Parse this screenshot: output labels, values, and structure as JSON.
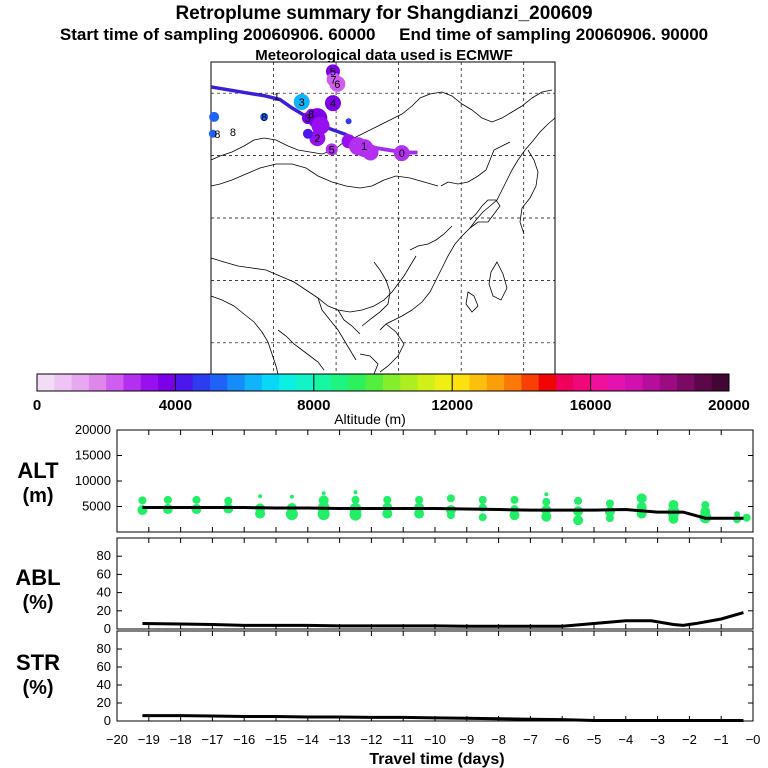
{
  "header": {
    "title": "Retroplume summary for Shangdianzi_200609",
    "start_label": "Start time of sampling 20060906. 60000",
    "end_label": "End time of sampling 20060906. 90000",
    "met_label": "Meteorological data used is ECMWF"
  },
  "colors": {
    "track": "#3b1fd8",
    "track_end": "#a32cf0",
    "alt_points": "#22ee66",
    "line": "#000000"
  },
  "map_labels": [
    {
      "text": "0",
      "lon": 125.5,
      "lat": 40.4
    },
    {
      "text": "1",
      "lon": 105.5,
      "lat": 49.5
    },
    {
      "text": "1",
      "lon": 119.5,
      "lat": 41.5
    },
    {
      "text": "2",
      "lon": 112.0,
      "lat": 42.8
    },
    {
      "text": "3",
      "lon": 109.5,
      "lat": 48.6
    },
    {
      "text": "3",
      "lon": 110.5,
      "lat": 46.0
    },
    {
      "text": "4",
      "lon": 114.5,
      "lat": 48.4
    },
    {
      "text": "5",
      "lon": 114.5,
      "lat": 53.5
    },
    {
      "text": "5",
      "lon": 114.3,
      "lat": 41.0
    },
    {
      "text": "6",
      "lon": 115.2,
      "lat": 51.5
    },
    {
      "text": "7",
      "lon": 114.6,
      "lat": 52.2
    },
    {
      "text": "8",
      "lon": 111.0,
      "lat": 46.7
    },
    {
      "text": "8",
      "lon": 103.5,
      "lat": 46.2
    },
    {
      "text": "8",
      "lon": 98.5,
      "lat": 43.8
    },
    {
      "text": "8",
      "lon": 96.0,
      "lat": 43.5
    }
  ],
  "colorbar": {
    "tick_labels": [
      "0",
      "4000",
      "8000",
      "12000",
      "16000",
      "20000"
    ],
    "label": "Altitude (m)"
  },
  "panels": {
    "alt": {
      "label": "ALT",
      "unit": "(m)"
    },
    "abl": {
      "label": "ABL",
      "unit": "(%)"
    },
    "str": {
      "label": "STR",
      "unit": "(%)"
    },
    "xlabel": "Travel time (days)"
  },
  "chart_data": [
    {
      "type": "map",
      "title": "Retroplume summary for Shangdianzi_200609",
      "lon_range": [
        95,
        150
      ],
      "lat_range": [
        5,
        55
      ],
      "grid_lons": [
        105,
        115,
        125,
        135,
        145
      ],
      "grid_lats": [
        10,
        20,
        30,
        40,
        50
      ],
      "track": [
        [
          95,
          51.0
        ],
        [
          98,
          50.5
        ],
        [
          101,
          50.0
        ],
        [
          103.5,
          49.6
        ],
        [
          106,
          49.0
        ],
        [
          108,
          47.6
        ],
        [
          110,
          46.4
        ],
        [
          112,
          45.3
        ],
        [
          114,
          44.3
        ],
        [
          116.5,
          43.4
        ],
        [
          118.5,
          42.2
        ],
        [
          121.5,
          41.2
        ],
        [
          124,
          40.8
        ],
        [
          126,
          40.5
        ],
        [
          128,
          40.5
        ]
      ],
      "track_end_segment": [
        [
          116.5,
          43.4
        ],
        [
          118.5,
          42.2
        ],
        [
          121.5,
          41.2
        ],
        [
          124,
          40.8
        ],
        [
          126,
          40.5
        ],
        [
          128,
          40.5
        ]
      ],
      "plume_centroids": [
        {
          "lon": 114.5,
          "lat": 53.5,
          "alt": 3800,
          "size": 7
        },
        {
          "lon": 114.6,
          "lat": 52.2,
          "alt": 2200,
          "size": 7
        },
        {
          "lon": 115.2,
          "lat": 51.5,
          "alt": 2000,
          "size": 8
        },
        {
          "lon": 114.5,
          "lat": 48.4,
          "alt": 3800,
          "size": 8
        },
        {
          "lon": 109.5,
          "lat": 48.6,
          "alt": 6000,
          "size": 8
        },
        {
          "lon": 110.5,
          "lat": 46.0,
          "alt": 3600,
          "size": 6
        },
        {
          "lon": 111.0,
          "lat": 46.7,
          "alt": 3000,
          "size": 5
        },
        {
          "lon": 112.0,
          "lat": 46.0,
          "alt": 3700,
          "size": 10
        },
        {
          "lon": 112.5,
          "lat": 44.8,
          "alt": 3400,
          "size": 9
        },
        {
          "lon": 112.0,
          "lat": 42.8,
          "alt": 3000,
          "size": 8
        },
        {
          "lon": 117.0,
          "lat": 42.3,
          "alt": 3000,
          "size": 7
        },
        {
          "lon": 118.5,
          "lat": 41.5,
          "alt": 2700,
          "size": 9
        },
        {
          "lon": 119.5,
          "lat": 41.2,
          "alt": 2700,
          "size": 9
        },
        {
          "lon": 120.5,
          "lat": 40.5,
          "alt": 2700,
          "size": 8
        },
        {
          "lon": 114.3,
          "lat": 41.0,
          "alt": 2900,
          "size": 6
        },
        {
          "lon": 125.5,
          "lat": 40.4,
          "alt": 2600,
          "size": 8
        },
        {
          "lon": 95.5,
          "lat": 46.2,
          "alt": 5000,
          "size": 5
        },
        {
          "lon": 95.3,
          "lat": 43.5,
          "alt": 5000,
          "size": 4
        },
        {
          "lon": 103.5,
          "lat": 46.2,
          "alt": 5000,
          "size": 4
        },
        {
          "lon": 110.5,
          "lat": 43.5,
          "alt": 4200,
          "size": 5
        },
        {
          "lon": 117.0,
          "lat": 45.5,
          "alt": 4600,
          "size": 3
        }
      ]
    },
    {
      "type": "colorbar",
      "xlabel": "Altitude (m)",
      "range": [
        0,
        20000
      ],
      "step": 1000,
      "tick_labels": [
        "0",
        "4000",
        "8000",
        "12000",
        "16000",
        "20000"
      ],
      "colors": [
        "#f4dcf8",
        "#eec4f5",
        "#e7a8f1",
        "#df86ec",
        "#cf5df0",
        "#b430f0",
        "#9810f0",
        "#7c00e8",
        "#4b17ec",
        "#2f3bf0",
        "#1f63f6",
        "#158cfa",
        "#10b4fa",
        "#0ad6f8",
        "#0cf0e4",
        "#12f4c4",
        "#17f6a2",
        "#1ef47e",
        "#2cf05c",
        "#56ee3e",
        "#84ee2c",
        "#aeee20",
        "#d2f018",
        "#eef014",
        "#fce010",
        "#fcc00c",
        "#fc9e0a",
        "#fc7808",
        "#f84006",
        "#f00404",
        "#f0005a",
        "#f0087a",
        "#f0109a",
        "#e412ae",
        "#d010b0",
        "#b60e9a",
        "#9a0c80",
        "#7c0a64",
        "#5c0848",
        "#420634"
      ]
    },
    {
      "type": "scatter+line",
      "panel": "ALT",
      "xlabel": "Travel time (days)",
      "ylabel": "ALT (m)",
      "xlim": [
        -20,
        0
      ],
      "ylim": [
        0,
        20000
      ],
      "ytick_labels": [
        "5000",
        "10000",
        "15000",
        "20000"
      ],
      "xtick_labels": [
        "−20",
        "−19",
        "−18",
        "−17",
        "−16",
        "−15",
        "−14",
        "−13",
        "−12",
        "−11",
        "−10",
        "−9",
        "−8",
        "−7",
        "−6",
        "−5",
        "−4",
        "−3",
        "−2",
        "−1",
        "−0"
      ],
      "line": {
        "x": [
          -19.2,
          -18,
          -17,
          -16,
          -15,
          -14,
          -13,
          -12,
          -11,
          -10,
          -9,
          -8,
          -7,
          -6,
          -5,
          -4,
          -3,
          -2.2,
          -1.5,
          -1,
          -0.3
        ],
        "y": [
          4800,
          4800,
          4800,
          4800,
          4700,
          4700,
          4600,
          4600,
          4600,
          4600,
          4500,
          4400,
          4300,
          4300,
          4300,
          4400,
          3900,
          3900,
          2700,
          2700,
          2700
        ]
      },
      "points": [
        {
          "x": -19.2,
          "y": 6200,
          "r": 4
        },
        {
          "x": -19.2,
          "y": 4300,
          "r": 5
        },
        {
          "x": -18.4,
          "y": 6300,
          "r": 4
        },
        {
          "x": -18.4,
          "y": 4500,
          "r": 5
        },
        {
          "x": -17.5,
          "y": 6300,
          "r": 4
        },
        {
          "x": -17.5,
          "y": 4500,
          "r": 5
        },
        {
          "x": -16.5,
          "y": 6100,
          "r": 4
        },
        {
          "x": -16.5,
          "y": 4600,
          "r": 5
        },
        {
          "x": -15.5,
          "y": 7000,
          "r": 2
        },
        {
          "x": -15.5,
          "y": 4600,
          "r": 5
        },
        {
          "x": -15.5,
          "y": 3600,
          "r": 5
        },
        {
          "x": -14.5,
          "y": 6900,
          "r": 2
        },
        {
          "x": -14.5,
          "y": 4700,
          "r": 5
        },
        {
          "x": -14.5,
          "y": 3500,
          "r": 6
        },
        {
          "x": -13.5,
          "y": 7600,
          "r": 2
        },
        {
          "x": -13.5,
          "y": 6200,
          "r": 5
        },
        {
          "x": -13.5,
          "y": 4700,
          "r": 6
        },
        {
          "x": -13.5,
          "y": 3500,
          "r": 6
        },
        {
          "x": -12.5,
          "y": 7800,
          "r": 2
        },
        {
          "x": -12.5,
          "y": 6300,
          "r": 4
        },
        {
          "x": -12.5,
          "y": 4500,
          "r": 6
        },
        {
          "x": -12.5,
          "y": 3400,
          "r": 6
        },
        {
          "x": -11.5,
          "y": 6300,
          "r": 4
        },
        {
          "x": -11.5,
          "y": 4800,
          "r": 5
        },
        {
          "x": -11.5,
          "y": 3600,
          "r": 5
        },
        {
          "x": -10.5,
          "y": 6300,
          "r": 4
        },
        {
          "x": -10.5,
          "y": 4800,
          "r": 5
        },
        {
          "x": -10.5,
          "y": 3600,
          "r": 5
        },
        {
          "x": -9.5,
          "y": 6600,
          "r": 4
        },
        {
          "x": -9.5,
          "y": 4300,
          "r": 5
        },
        {
          "x": -9.5,
          "y": 3300,
          "r": 4
        },
        {
          "x": -8.5,
          "y": 6300,
          "r": 4
        },
        {
          "x": -8.5,
          "y": 4800,
          "r": 4
        },
        {
          "x": -8.5,
          "y": 2900,
          "r": 4
        },
        {
          "x": -7.5,
          "y": 6300,
          "r": 4
        },
        {
          "x": -7.5,
          "y": 4500,
          "r": 4
        },
        {
          "x": -7.5,
          "y": 3300,
          "r": 5
        },
        {
          "x": -6.5,
          "y": 7400,
          "r": 2
        },
        {
          "x": -6.5,
          "y": 5900,
          "r": 4
        },
        {
          "x": -6.5,
          "y": 4300,
          "r": 5
        },
        {
          "x": -6.5,
          "y": 3000,
          "r": 5
        },
        {
          "x": -5.5,
          "y": 6100,
          "r": 4
        },
        {
          "x": -5.5,
          "y": 4100,
          "r": 5
        },
        {
          "x": -5.5,
          "y": 2300,
          "r": 5
        },
        {
          "x": -4.5,
          "y": 5600,
          "r": 4
        },
        {
          "x": -4.5,
          "y": 4000,
          "r": 5
        },
        {
          "x": -4.5,
          "y": 2700,
          "r": 4
        },
        {
          "x": -3.5,
          "y": 6600,
          "r": 5
        },
        {
          "x": -3.5,
          "y": 4900,
          "r": 5
        },
        {
          "x": -3.5,
          "y": 3600,
          "r": 5
        },
        {
          "x": -2.5,
          "y": 5300,
          "r": 5
        },
        {
          "x": -2.5,
          "y": 3900,
          "r": 6
        },
        {
          "x": -2.5,
          "y": 2600,
          "r": 5
        },
        {
          "x": -1.5,
          "y": 5300,
          "r": 4
        },
        {
          "x": -1.5,
          "y": 4000,
          "r": 5
        },
        {
          "x": -1.5,
          "y": 2900,
          "r": 6
        },
        {
          "x": -0.5,
          "y": 3500,
          "r": 3
        },
        {
          "x": -0.5,
          "y": 2500,
          "r": 4
        },
        {
          "x": -0.2,
          "y": 2800,
          "r": 4
        }
      ]
    },
    {
      "type": "line",
      "panel": "ABL",
      "ylabel": "ABL (%)",
      "xlim": [
        -20,
        0
      ],
      "ylim": [
        0,
        100
      ],
      "ytick_labels": [
        "0",
        "20",
        "40",
        "60",
        "80"
      ],
      "x": [
        -19.2,
        -18,
        -17,
        -16,
        -15,
        -14,
        -13,
        -12,
        -11,
        -10,
        -9,
        -8,
        -7,
        -6,
        -5,
        -4,
        -3.2,
        -2.5,
        -2.2,
        -1.8,
        -1,
        -0.3
      ],
      "y": [
        6,
        5.5,
        5,
        4,
        4,
        4,
        3.5,
        3.5,
        3.5,
        3.5,
        3,
        3,
        3,
        3,
        6,
        9,
        9,
        5,
        4,
        6,
        11,
        18
      ]
    },
    {
      "type": "line",
      "panel": "STR",
      "ylabel": "STR (%)",
      "xlim": [
        -20,
        0
      ],
      "ylim": [
        0,
        100
      ],
      "ytick_labels": [
        "0",
        "20",
        "40",
        "60",
        "80"
      ],
      "x": [
        -19.2,
        -18,
        -17,
        -16,
        -15,
        -14,
        -13,
        -12,
        -11,
        -10,
        -9,
        -8,
        -7,
        -6,
        -5,
        -4,
        -3,
        -2,
        -1,
        -0.3
      ],
      "y": [
        6,
        6,
        5.5,
        5,
        5,
        4.5,
        4.5,
        4,
        4,
        3.5,
        3,
        2.5,
        2,
        1.5,
        0.5,
        0.5,
        0.5,
        0.5,
        0.5,
        0.5
      ]
    }
  ]
}
